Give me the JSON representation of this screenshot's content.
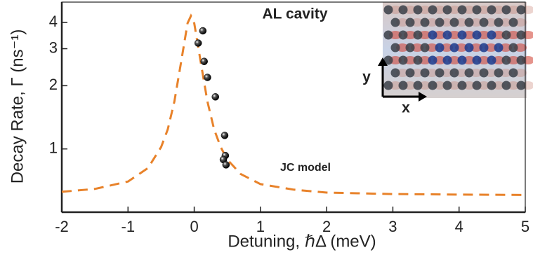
{
  "chart_data": {
    "type": "line",
    "title": "AL cavity",
    "x_label": "Detuning, ℏΔ (meV)",
    "y_label": "Decay Rate, Γ (ns⁻¹)",
    "annotation": "JC model",
    "inset_labels": {
      "x": "x",
      "y": "y"
    },
    "log_y": true,
    "xlim": [
      -2,
      5
    ],
    "xticks": [
      -2,
      -1,
      0,
      1,
      2,
      3,
      4,
      5
    ],
    "ylim": [
      0.5,
      5
    ],
    "yticks": [
      1,
      2,
      3,
      4
    ],
    "curve": {
      "color": "#e8822a",
      "dashed": true,
      "x": [
        -2,
        -1.5,
        -1,
        -0.7,
        -0.5,
        -0.4,
        -0.3,
        -0.2,
        -0.1,
        -0.05,
        0,
        0.1,
        0.2,
        0.3,
        0.4,
        0.5,
        0.7,
        1,
        1.5,
        2,
        3,
        4,
        5
      ],
      "values": [
        0.625,
        0.645,
        0.7,
        0.81,
        1.02,
        1.24,
        1.68,
        2.57,
        3.97,
        4.3,
        3.97,
        2.57,
        1.68,
        1.24,
        1.02,
        0.89,
        0.76,
        0.68,
        0.64,
        0.62,
        0.61,
        0.606,
        0.604
      ]
    },
    "points": {
      "color": "#000000",
      "x": [
        0.13,
        0.06,
        0.15,
        0.2,
        0.32,
        0.46,
        0.47,
        0.44,
        0.48
      ],
      "values": [
        3.65,
        3.19,
        2.61,
        2.19,
        1.77,
        1.16,
        0.93,
        0.89,
        0.84
      ]
    }
  }
}
